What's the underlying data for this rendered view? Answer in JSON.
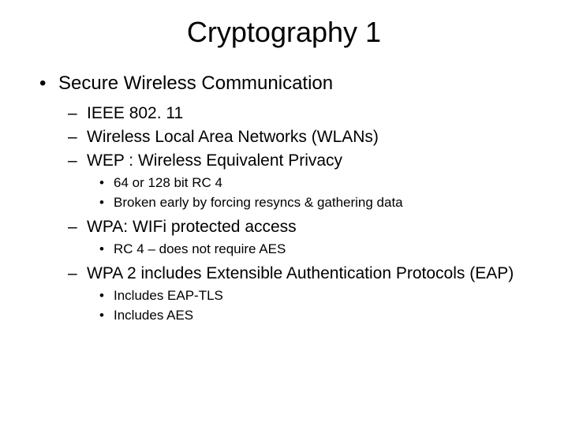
{
  "title": "Cryptography 1",
  "level1_bullet": "•",
  "level2_bullet": "–",
  "level3_bullet": "•",
  "item1": "Secure Wireless Communication",
  "sub1": "IEEE 802. 11",
  "sub2": "Wireless Local Area Networks (WLANs)",
  "sub3": "WEP : Wireless Equivalent Privacy",
  "sub3a": "64 or 128 bit RC 4",
  "sub3b": "Broken early by forcing resyncs & gathering data",
  "sub4": "WPA: WIFi protected access",
  "sub4a": "RC 4 – does not require AES",
  "sub5": "WPA 2 includes Extensible Authentication Protocols (EAP)",
  "sub5a": "Includes EAP-TLS",
  "sub5b": "Includes AES"
}
